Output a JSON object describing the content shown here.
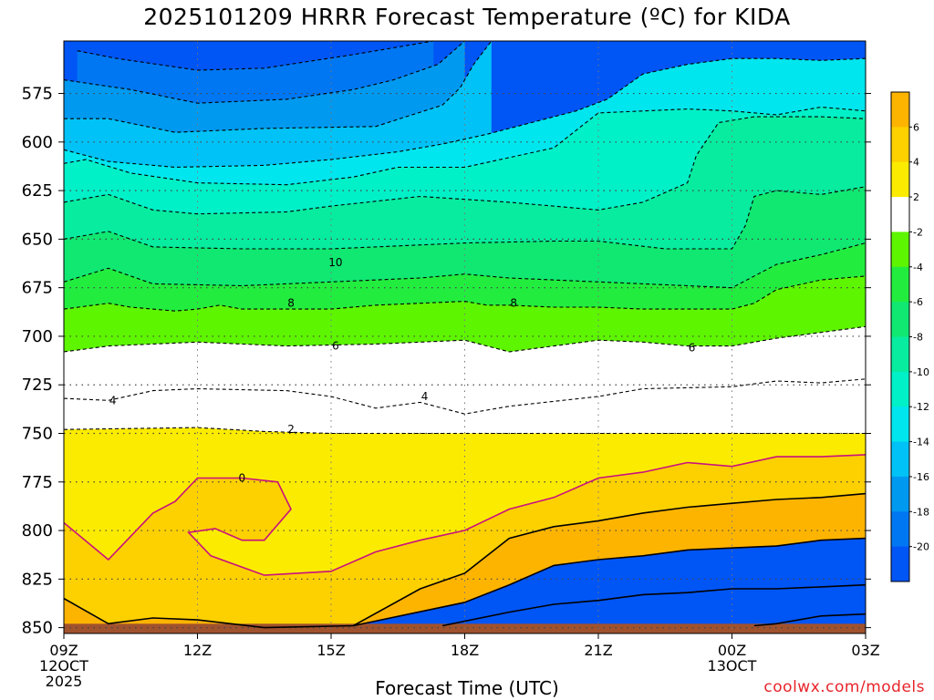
{
  "title": "2025101209 HRRR Forecast Temperature (ºC) for KIDA",
  "xlabel": "Forecast Time (UTC)",
  "credit": "coolwx.com/models",
  "chart_data": {
    "type": "heatmap",
    "title": "2025101209 HRRR Forecast Temperature (ºC) for KIDA",
    "xlabel": "Forecast Time (UTC)",
    "ylabel": "",
    "x_ticks": [
      {
        "label": "09Z",
        "sub": [
          "12OCT",
          "2025"
        ]
      },
      {
        "label": "12Z",
        "sub": []
      },
      {
        "label": "15Z",
        "sub": []
      },
      {
        "label": "18Z",
        "sub": []
      },
      {
        "label": "21Z",
        "sub": []
      },
      {
        "label": "00Z",
        "sub": [
          "13OCT"
        ]
      },
      {
        "label": "03Z",
        "sub": []
      }
    ],
    "x_hours": [
      0,
      3,
      6,
      9,
      12,
      15,
      18
    ],
    "y_ticks": [
      575,
      600,
      625,
      650,
      675,
      700,
      725,
      750,
      775,
      800,
      825,
      850
    ],
    "ylim": [
      853,
      548
    ],
    "grid": true,
    "colorbar": {
      "labels": [
        "6",
        "4",
        "2",
        "-2",
        "-4",
        "-6",
        "-8",
        "-10",
        "-12",
        "-14",
        "-16",
        "-18",
        "-20"
      ],
      "bins": [
        {
          "lo": 6,
          "hi": 8,
          "color": "#fdb400"
        },
        {
          "lo": 4,
          "hi": 6,
          "color": "#fdd000"
        },
        {
          "lo": 2,
          "hi": 4,
          "color": "#fbeb00"
        },
        {
          "lo": -2,
          "hi": 2,
          "color": "#ffffff"
        },
        {
          "lo": -4,
          "hi": -2,
          "color": "#5df500"
        },
        {
          "lo": -6,
          "hi": -4,
          "color": "#22ed3f"
        },
        {
          "lo": -8,
          "hi": -6,
          "color": "#10e872"
        },
        {
          "lo": -10,
          "hi": -8,
          "color": "#08ec9f"
        },
        {
          "lo": -12,
          "hi": -10,
          "color": "#00f0c8"
        },
        {
          "lo": -14,
          "hi": -12,
          "color": "#00e6ee"
        },
        {
          "lo": -16,
          "hi": -14,
          "color": "#00c2f6"
        },
        {
          "lo": -18,
          "hi": -16,
          "color": "#0099f0"
        },
        {
          "lo": -20,
          "hi": -18,
          "color": "#0077f2"
        },
        {
          "lo": -22,
          "hi": -20,
          "color": "#0055f5"
        }
      ]
    },
    "surface_color": "#a0522d",
    "surface_pressure": 848,
    "isotherms": [
      {
        "value": -20,
        "style": "dashed",
        "color": "#000000",
        "points": [
          [
            0.3,
            553
          ],
          [
            1.2,
            557
          ],
          [
            3.0,
            563
          ],
          [
            4.5,
            562
          ],
          [
            6.5,
            555
          ],
          [
            8.3,
            548
          ]
        ]
      },
      {
        "value": -18,
        "style": "dashed",
        "color": "#000000",
        "points": [
          [
            0,
            568
          ],
          [
            1.5,
            573
          ],
          [
            3.0,
            580
          ],
          [
            5.0,
            578
          ],
          [
            6.5,
            573
          ],
          [
            7.4,
            568
          ],
          [
            8.4,
            560
          ],
          [
            9.0,
            548
          ]
        ]
      },
      {
        "value": -16,
        "style": "dashed",
        "color": "#000000",
        "points": [
          [
            0,
            588
          ],
          [
            1.0,
            588
          ],
          [
            2.5,
            595
          ],
          [
            4.5,
            593
          ],
          [
            7.0,
            592
          ],
          [
            8.5,
            581
          ],
          [
            8.9,
            572
          ],
          [
            9.2,
            560
          ],
          [
            9.6,
            548
          ]
        ]
      },
      {
        "value": -14,
        "style": "dashed",
        "color": "#000000",
        "points": [
          [
            0,
            604
          ],
          [
            1.0,
            610
          ],
          [
            2.5,
            613
          ],
          [
            4.5,
            612
          ],
          [
            6.0,
            609
          ],
          [
            7.5,
            605
          ],
          [
            8.5,
            601
          ],
          [
            9.5,
            596
          ],
          [
            10.5,
            590
          ],
          [
            11.5,
            584
          ],
          [
            12.2,
            578
          ],
          [
            13.0,
            565
          ],
          [
            14.0,
            560
          ],
          [
            15.0,
            557
          ],
          [
            16.0,
            557
          ],
          [
            17.0,
            558
          ],
          [
            18.0,
            557
          ]
        ]
      },
      {
        "value": -12,
        "style": "dashed",
        "color": "#000000",
        "points": [
          [
            0,
            611
          ],
          [
            0.5,
            609
          ],
          [
            1.5,
            616
          ],
          [
            3.0,
            621
          ],
          [
            5.0,
            622
          ],
          [
            6.5,
            618
          ],
          [
            7.5,
            613
          ],
          [
            9.0,
            613
          ],
          [
            10.0,
            608
          ],
          [
            11.0,
            603
          ],
          [
            12.0,
            585
          ],
          [
            14.0,
            583
          ],
          [
            15.0,
            584
          ],
          [
            16.0,
            586
          ],
          [
            17.0,
            582
          ],
          [
            18.0,
            584
          ]
        ]
      },
      {
        "value": -10,
        "style": "dashed",
        "color": "#000000",
        "points": [
          [
            0,
            631
          ],
          [
            1.0,
            627
          ],
          [
            2.0,
            635
          ],
          [
            3.0,
            637
          ],
          [
            5.0,
            636
          ],
          [
            6.0,
            633
          ],
          [
            8.0,
            628
          ],
          [
            10.0,
            631
          ],
          [
            12.0,
            635
          ],
          [
            13.0,
            631
          ],
          [
            14.0,
            621
          ],
          [
            14.2,
            607
          ],
          [
            14.7,
            590
          ],
          [
            15.5,
            587
          ],
          [
            16.5,
            587
          ],
          [
            17.0,
            587
          ],
          [
            18.0,
            588
          ]
        ]
      },
      {
        "value": -8,
        "style": "dashed",
        "color": "#000000",
        "points": [
          [
            0,
            650
          ],
          [
            1.0,
            646
          ],
          [
            2.0,
            654
          ],
          [
            4.0,
            655
          ],
          [
            6.0,
            655
          ],
          [
            7.0,
            654
          ],
          [
            9.0,
            652
          ],
          [
            11.0,
            651
          ],
          [
            12.0,
            651
          ],
          [
            13.5,
            655
          ],
          [
            15.0,
            655
          ],
          [
            15.3,
            643
          ],
          [
            15.5,
            628
          ],
          [
            16.0,
            625
          ],
          [
            17.0,
            627
          ],
          [
            18.0,
            623
          ]
        ]
      },
      {
        "value": -6,
        "style": "dashed",
        "color": "#000000",
        "points": [
          [
            0,
            672
          ],
          [
            1.0,
            665
          ],
          [
            2.0,
            673
          ],
          [
            4.0,
            674
          ],
          [
            6.0,
            672
          ],
          [
            8.0,
            670
          ],
          [
            9.0,
            668
          ],
          [
            10.0,
            670
          ],
          [
            12.0,
            672
          ],
          [
            14.0,
            674
          ],
          [
            15.0,
            675
          ],
          [
            16.0,
            663
          ],
          [
            17.0,
            658
          ],
          [
            18.0,
            652
          ]
        ]
      },
      {
        "value": -4,
        "style": "dashed",
        "color": "#000000",
        "points": [
          [
            0,
            686
          ],
          [
            1.0,
            683
          ],
          [
            1.5,
            685
          ],
          [
            2.5,
            687
          ],
          [
            3.0,
            686
          ],
          [
            3.5,
            684
          ],
          [
            4.0,
            686
          ],
          [
            5.0,
            686
          ],
          [
            6.0,
            686
          ],
          [
            7.0,
            684
          ],
          [
            8.0,
            683
          ],
          [
            9.0,
            682
          ],
          [
            9.5,
            684
          ],
          [
            10.0,
            684
          ],
          [
            11.0,
            685
          ],
          [
            12.0,
            685
          ],
          [
            13.0,
            686
          ],
          [
            14.0,
            686
          ],
          [
            15.0,
            686
          ],
          [
            15.5,
            683
          ],
          [
            16.0,
            676
          ],
          [
            17.0,
            671
          ],
          [
            18.0,
            669
          ]
        ]
      },
      {
        "value": -2,
        "style": "dashed",
        "color": "#000000",
        "points": [
          [
            0,
            708
          ],
          [
            1.0,
            705
          ],
          [
            3.0,
            703
          ],
          [
            5.0,
            705
          ],
          [
            7.0,
            704
          ],
          [
            9.0,
            702
          ],
          [
            10.0,
            708
          ],
          [
            12.0,
            702
          ],
          [
            13.0,
            703
          ],
          [
            14.0,
            705
          ],
          [
            15.0,
            705
          ],
          [
            16.0,
            701
          ],
          [
            17.0,
            698
          ],
          [
            18.0,
            695
          ]
        ]
      },
      {
        "value": 0,
        "style": "dashed",
        "color": "#000000",
        "points": [
          [
            0,
            732
          ],
          [
            1.0,
            733
          ],
          [
            2.0,
            728
          ],
          [
            3.0,
            727
          ],
          [
            5.0,
            728
          ],
          [
            6.0,
            731
          ],
          [
            7.0,
            737
          ],
          [
            8.0,
            734
          ],
          [
            9.0,
            740
          ],
          [
            10.0,
            736
          ],
          [
            12.0,
            731
          ],
          [
            13.0,
            727
          ],
          [
            15.0,
            726
          ],
          [
            16.0,
            723
          ],
          [
            17.0,
            724
          ],
          [
            18.0,
            722
          ]
        ]
      },
      {
        "value": 2,
        "style": "dashed",
        "color": "#000000",
        "points": [
          [
            0,
            748
          ],
          [
            3.0,
            747
          ],
          [
            4.5,
            749
          ],
          [
            6.0,
            750
          ],
          [
            9.0,
            750
          ],
          [
            12.0,
            750
          ],
          [
            18.0,
            750
          ]
        ]
      },
      {
        "value": 4,
        "style": "solid",
        "color": "#c8127e",
        "points": [
          [
            0,
            796
          ],
          [
            1.0,
            815
          ],
          [
            2.0,
            791
          ],
          [
            2.5,
            785
          ],
          [
            3.0,
            773
          ],
          [
            4.0,
            773
          ],
          [
            4.8,
            775
          ],
          [
            5.1,
            789
          ],
          [
            4.5,
            805
          ],
          [
            4.0,
            805
          ],
          [
            3.4,
            799
          ],
          [
            2.8,
            801
          ],
          [
            3.3,
            813
          ],
          [
            4.5,
            823
          ],
          [
            6.0,
            821
          ],
          [
            7.0,
            811
          ],
          [
            8.0,
            805
          ],
          [
            9.0,
            800
          ],
          [
            10.0,
            789
          ],
          [
            11.0,
            783
          ],
          [
            12.0,
            773
          ],
          [
            13.0,
            770
          ],
          [
            14.0,
            765
          ],
          [
            15.0,
            767
          ],
          [
            16.0,
            762
          ],
          [
            17.0,
            762
          ],
          [
            18.0,
            761
          ]
        ]
      },
      {
        "value": 6,
        "style": "solid",
        "color": "#000000",
        "points": [
          [
            0,
            835
          ],
          [
            1.0,
            848
          ],
          [
            2.0,
            845
          ],
          [
            3.0,
            846
          ],
          [
            4.5,
            850
          ],
          [
            6.5,
            849
          ],
          [
            8.0,
            830
          ],
          [
            9.0,
            822
          ],
          [
            10.0,
            804
          ],
          [
            11.0,
            798
          ],
          [
            12.0,
            795
          ],
          [
            13.0,
            791
          ],
          [
            14.0,
            788
          ],
          [
            15.0,
            786
          ],
          [
            16.0,
            784
          ],
          [
            17.0,
            783
          ],
          [
            18.0,
            781
          ]
        ]
      },
      {
        "value": 8,
        "style": "solid",
        "color": "#000000",
        "points": [
          [
            6.5,
            849
          ],
          [
            9.0,
            837
          ],
          [
            10.0,
            828
          ],
          [
            11.0,
            818
          ],
          [
            12.0,
            815
          ],
          [
            13.0,
            813
          ],
          [
            14.0,
            810
          ],
          [
            15.0,
            809
          ],
          [
            16.0,
            808
          ],
          [
            17.0,
            805
          ],
          [
            18.0,
            804
          ]
        ]
      },
      {
        "value": 10,
        "style": "solid",
        "color": "#000000",
        "points": [
          [
            8.5,
            849
          ],
          [
            10.0,
            842
          ],
          [
            11.0,
            838
          ],
          [
            12.0,
            836
          ],
          [
            13.0,
            833
          ],
          [
            14.0,
            832
          ],
          [
            15.0,
            830
          ],
          [
            16.0,
            830
          ],
          [
            17.0,
            829
          ],
          [
            18.0,
            828
          ]
        ]
      },
      {
        "value": 12,
        "style": "solid",
        "color": "#000000",
        "points": [
          [
            15.5,
            849
          ],
          [
            16.0,
            848
          ],
          [
            17.0,
            844
          ],
          [
            18.0,
            843
          ]
        ]
      }
    ],
    "annotations": [
      {
        "text": "10",
        "hour": 6.1,
        "pressure": 662
      },
      {
        "text": "8",
        "hour": 5.1,
        "pressure": 683
      },
      {
        "text": "8",
        "hour": 10.1,
        "pressure": 683
      },
      {
        "text": "6",
        "hour": 6.1,
        "pressure": 705
      },
      {
        "text": "6",
        "hour": 14.1,
        "pressure": 706
      },
      {
        "text": "4",
        "hour": 1.1,
        "pressure": 733
      },
      {
        "text": "4",
        "hour": 8.1,
        "pressure": 731
      },
      {
        "text": "2",
        "hour": 5.1,
        "pressure": 748
      },
      {
        "text": "0",
        "hour": 4.0,
        "pressure": 773
      }
    ]
  }
}
